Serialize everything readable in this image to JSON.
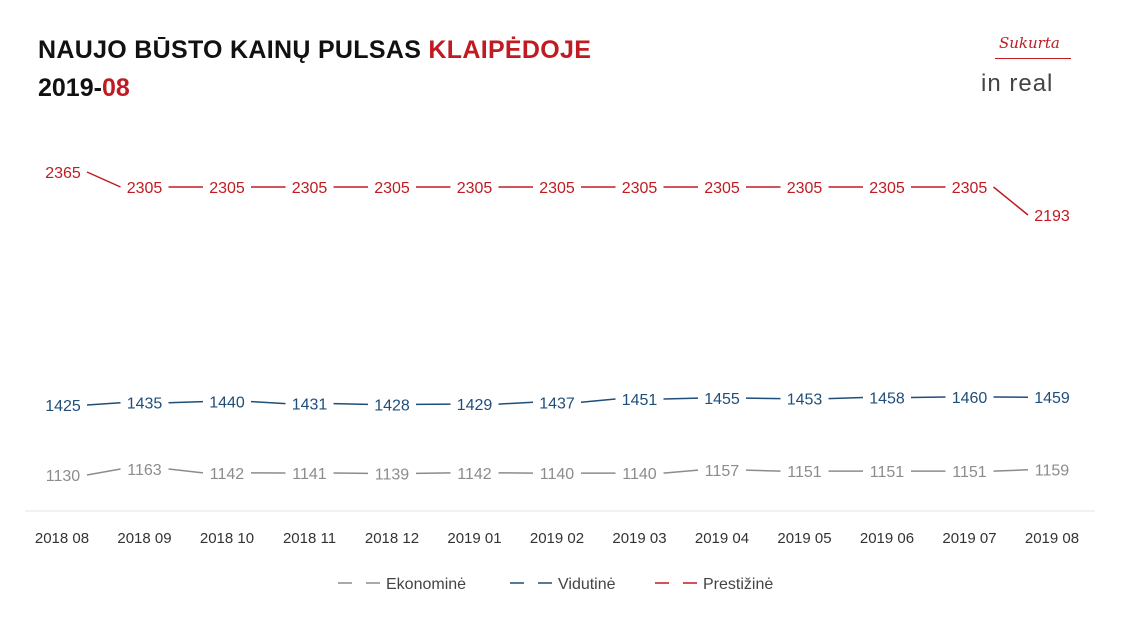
{
  "header": {
    "title_main": "NAUJO BŪSTO KAINŲ PULSAS ",
    "title_city": "KLAIPĖDOJE",
    "year": "2019-",
    "month": "08"
  },
  "logo": {
    "sukurta": "Sukurta",
    "inreal": "in real"
  },
  "colors": {
    "accent": "#c01b22",
    "ekonomine": "#8c8c8c",
    "vidutine": "#1f4e79",
    "prestizine": "#c01b22"
  },
  "chart_data": {
    "type": "line",
    "categories": [
      "2018 08",
      "2018 09",
      "2018 10",
      "2018 11",
      "2018 12",
      "2019 01",
      "2019 02",
      "2019 03",
      "2019 04",
      "2019 05",
      "2019 06",
      "2019 07",
      "2019 08"
    ],
    "series": [
      {
        "name": "Ekonominė",
        "color": "#8c8c8c",
        "values": [
          1130,
          1163,
          1142,
          1141,
          1139,
          1142,
          1140,
          1140,
          1157,
          1151,
          1151,
          1151,
          1159
        ]
      },
      {
        "name": "Vidutinė",
        "color": "#1f4e79",
        "values": [
          1425,
          1435,
          1440,
          1431,
          1428,
          1429,
          1437,
          1451,
          1455,
          1453,
          1458,
          1460,
          1459
        ]
      },
      {
        "name": "Prestižinė",
        "color": "#c01b22",
        "values": [
          2365,
          2305,
          2305,
          2305,
          2305,
          2305,
          2305,
          2305,
          2305,
          2305,
          2305,
          2305,
          2193
        ]
      }
    ],
    "legend": "bottom",
    "grid": false
  }
}
